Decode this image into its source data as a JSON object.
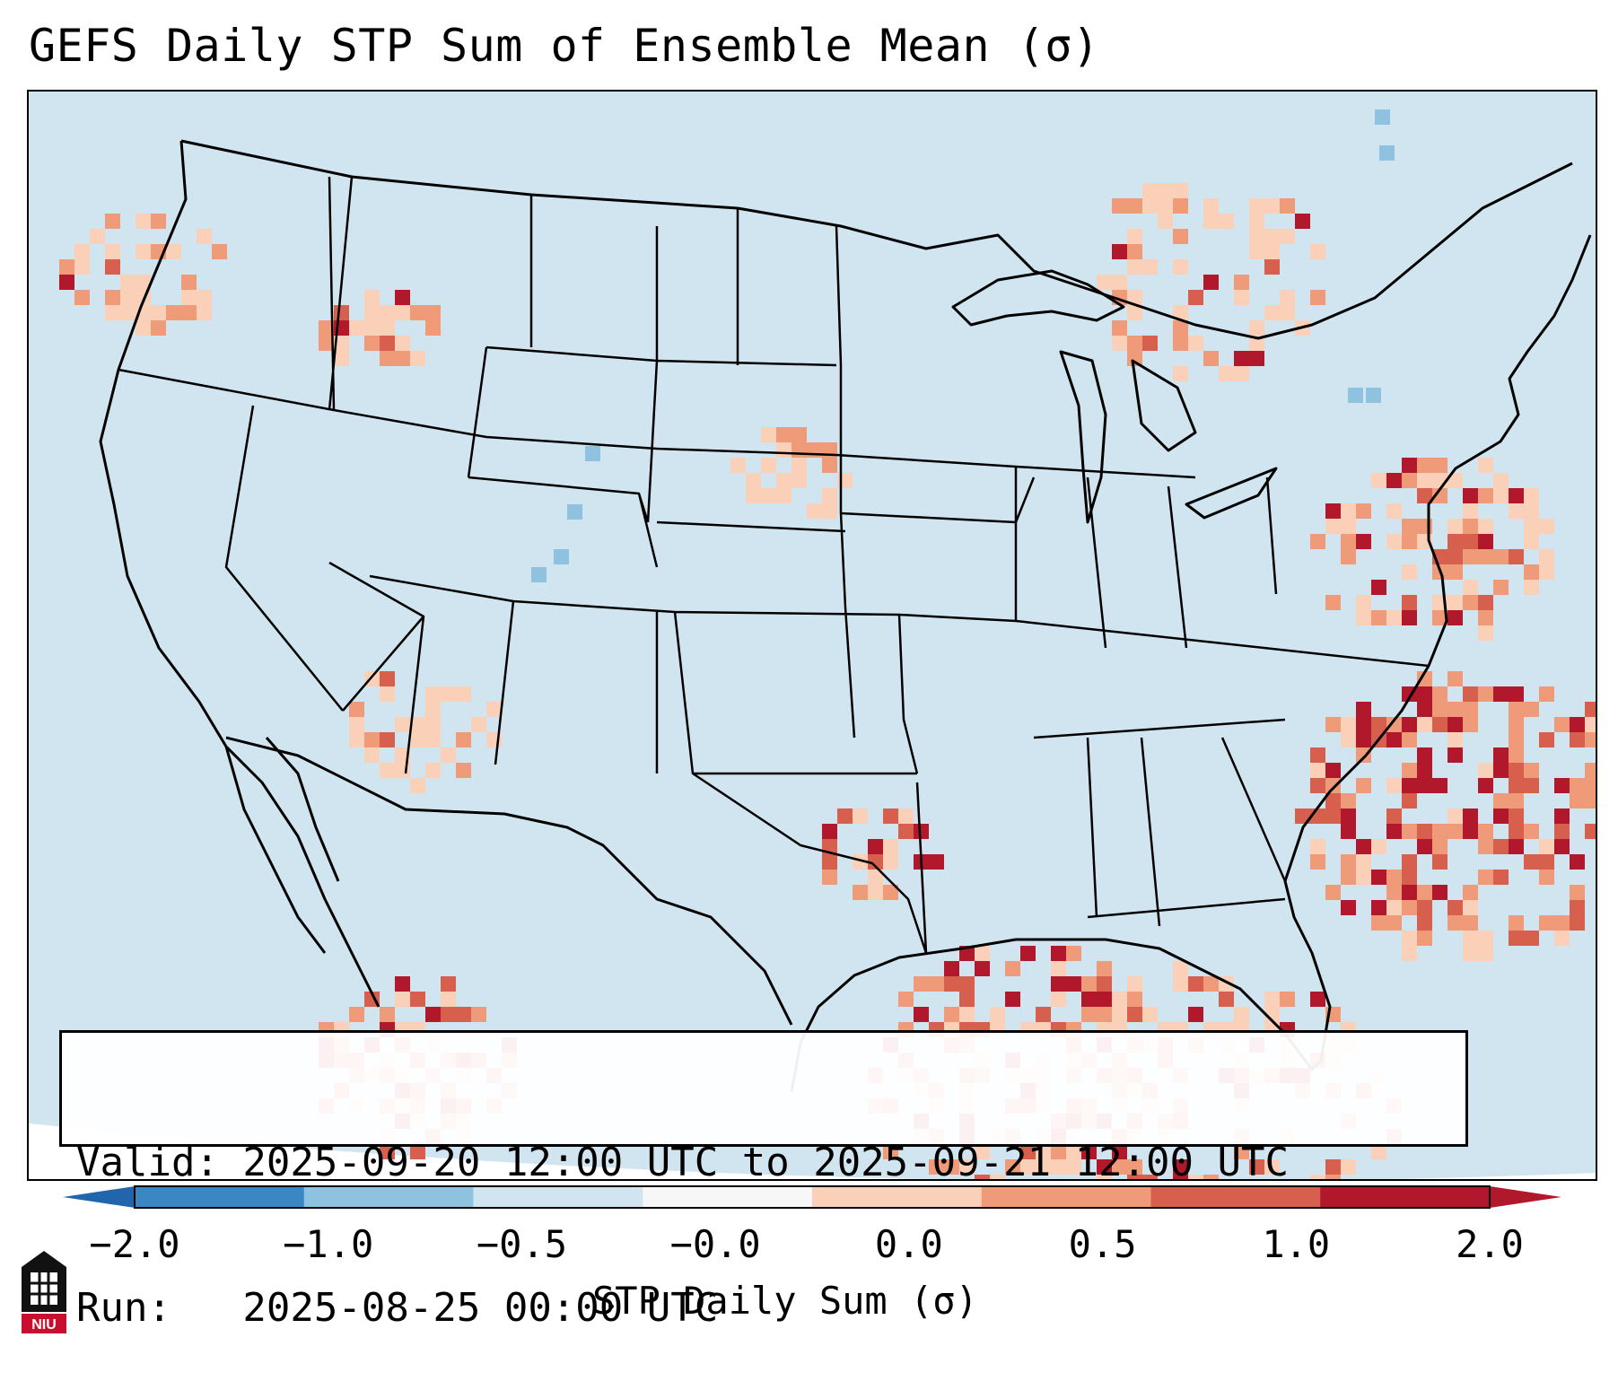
{
  "title": "GEFS Daily STP Sum of Ensemble Mean (σ)",
  "info": {
    "valid_line": "Valid: 2025-09-20 12:00 UTC to 2025-09-21 12:00 UTC",
    "run_line": "Run:   2025-08-25 00:00 UTC"
  },
  "colorbar": {
    "label": "STP Daily Sum (σ)",
    "ticks": [
      "−2.0",
      "−1.0",
      "−0.5",
      "−0.0",
      "0.0",
      "0.5",
      "1.0",
      "2.0"
    ],
    "colors": [
      "#3a87c3",
      "#8fc2de",
      "#d1e5f0",
      "#f7f7f7",
      "#fbd0b9",
      "#ef9a78",
      "#d6604d",
      "#b2182b"
    ],
    "extend_low_color": "#2166ac",
    "extend_high_color": "#b2182b"
  },
  "map": {
    "background_color": "#d1e5f0",
    "coast_color": "#000000"
  },
  "logo": {
    "text": "NIU",
    "color": "#c8102e"
  }
}
